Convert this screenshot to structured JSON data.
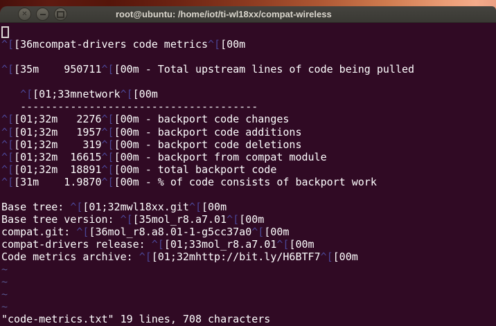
{
  "window": {
    "title": "root@ubuntu: /home/iot/ti-wl18xx/compat-wireless",
    "controls": [
      "close",
      "minimize",
      "maximize"
    ]
  },
  "terminal": {
    "bg": "#300a24",
    "colors": {
      "fg": "#ffffff",
      "esc": "#4b4696",
      "tilde": "#55558c"
    },
    "rows": [
      {
        "cursor": true,
        "segs": []
      },
      {
        "segs": [
          [
            "esc",
            "^["
          ],
          [
            "fg",
            "[36mcompat-drivers code metrics"
          ],
          [
            "esc",
            "^["
          ],
          [
            "fg",
            "[00m"
          ]
        ]
      },
      {
        "segs": []
      },
      {
        "segs": [
          [
            "esc",
            "^["
          ],
          [
            "fg",
            "[35m    950711"
          ],
          [
            "esc",
            "^["
          ],
          [
            "fg",
            "[00m - Total upstream lines of code being pulled"
          ]
        ]
      },
      {
        "segs": []
      },
      {
        "segs": [
          [
            "fg",
            "   "
          ],
          [
            "esc",
            "^["
          ],
          [
            "fg",
            "[01;33mnetwork"
          ],
          [
            "esc",
            "^["
          ],
          [
            "fg",
            "[00m"
          ]
        ]
      },
      {
        "segs": [
          [
            "fg",
            "   --------------------------------------"
          ]
        ]
      },
      {
        "segs": [
          [
            "esc",
            "^["
          ],
          [
            "fg",
            "[01;32m   2276"
          ],
          [
            "esc",
            "^["
          ],
          [
            "fg",
            "[00m - backport code changes"
          ]
        ]
      },
      {
        "segs": [
          [
            "esc",
            "^["
          ],
          [
            "fg",
            "[01;32m   1957"
          ],
          [
            "esc",
            "^["
          ],
          [
            "fg",
            "[00m - backport code additions"
          ]
        ]
      },
      {
        "segs": [
          [
            "esc",
            "^["
          ],
          [
            "fg",
            "[01;32m    319"
          ],
          [
            "esc",
            "^["
          ],
          [
            "fg",
            "[00m - backport code deletions"
          ]
        ]
      },
      {
        "segs": [
          [
            "esc",
            "^["
          ],
          [
            "fg",
            "[01;32m  16615"
          ],
          [
            "esc",
            "^["
          ],
          [
            "fg",
            "[00m - backport from compat module"
          ]
        ]
      },
      {
        "segs": [
          [
            "esc",
            "^["
          ],
          [
            "fg",
            "[01;32m  18891"
          ],
          [
            "esc",
            "^["
          ],
          [
            "fg",
            "[00m - total backport code"
          ]
        ]
      },
      {
        "segs": [
          [
            "esc",
            "^["
          ],
          [
            "fg",
            "[31m    1.9870"
          ],
          [
            "esc",
            "^["
          ],
          [
            "fg",
            "[00m - % of code consists of backport work"
          ]
        ]
      },
      {
        "segs": []
      },
      {
        "segs": [
          [
            "fg",
            "Base tree: "
          ],
          [
            "esc",
            "^["
          ],
          [
            "fg",
            "[01;32mwl18xx.git"
          ],
          [
            "esc",
            "^["
          ],
          [
            "fg",
            "[00m"
          ]
        ]
      },
      {
        "segs": [
          [
            "fg",
            "Base tree version: "
          ],
          [
            "esc",
            "^["
          ],
          [
            "fg",
            "[35mol_r8.a7.01"
          ],
          [
            "esc",
            "^["
          ],
          [
            "fg",
            "[00m"
          ]
        ]
      },
      {
        "segs": [
          [
            "fg",
            "compat.git: "
          ],
          [
            "esc",
            "^["
          ],
          [
            "fg",
            "[36mol_r8.a8.01-1-g5cc37a0"
          ],
          [
            "esc",
            "^["
          ],
          [
            "fg",
            "[00m"
          ]
        ]
      },
      {
        "segs": [
          [
            "fg",
            "compat-drivers release: "
          ],
          [
            "esc",
            "^["
          ],
          [
            "fg",
            "[01;33mol_r8.a7.01"
          ],
          [
            "esc",
            "^["
          ],
          [
            "fg",
            "[00m"
          ]
        ]
      },
      {
        "segs": [
          [
            "fg",
            "Code metrics archive: "
          ],
          [
            "esc",
            "^["
          ],
          [
            "fg",
            "[01;32mhttp://bit.ly/H6BTF7"
          ],
          [
            "esc",
            "^["
          ],
          [
            "fg",
            "[00m"
          ]
        ]
      },
      {
        "segs": [
          [
            "tilde",
            "~"
          ]
        ]
      },
      {
        "segs": [
          [
            "tilde",
            "~"
          ]
        ]
      },
      {
        "segs": [
          [
            "tilde",
            "~"
          ]
        ]
      },
      {
        "segs": [
          [
            "tilde",
            "~"
          ]
        ]
      },
      {
        "segs": [
          [
            "fg",
            "\"code-metrics.txt\" 19 lines, 708 characters"
          ]
        ]
      }
    ]
  }
}
